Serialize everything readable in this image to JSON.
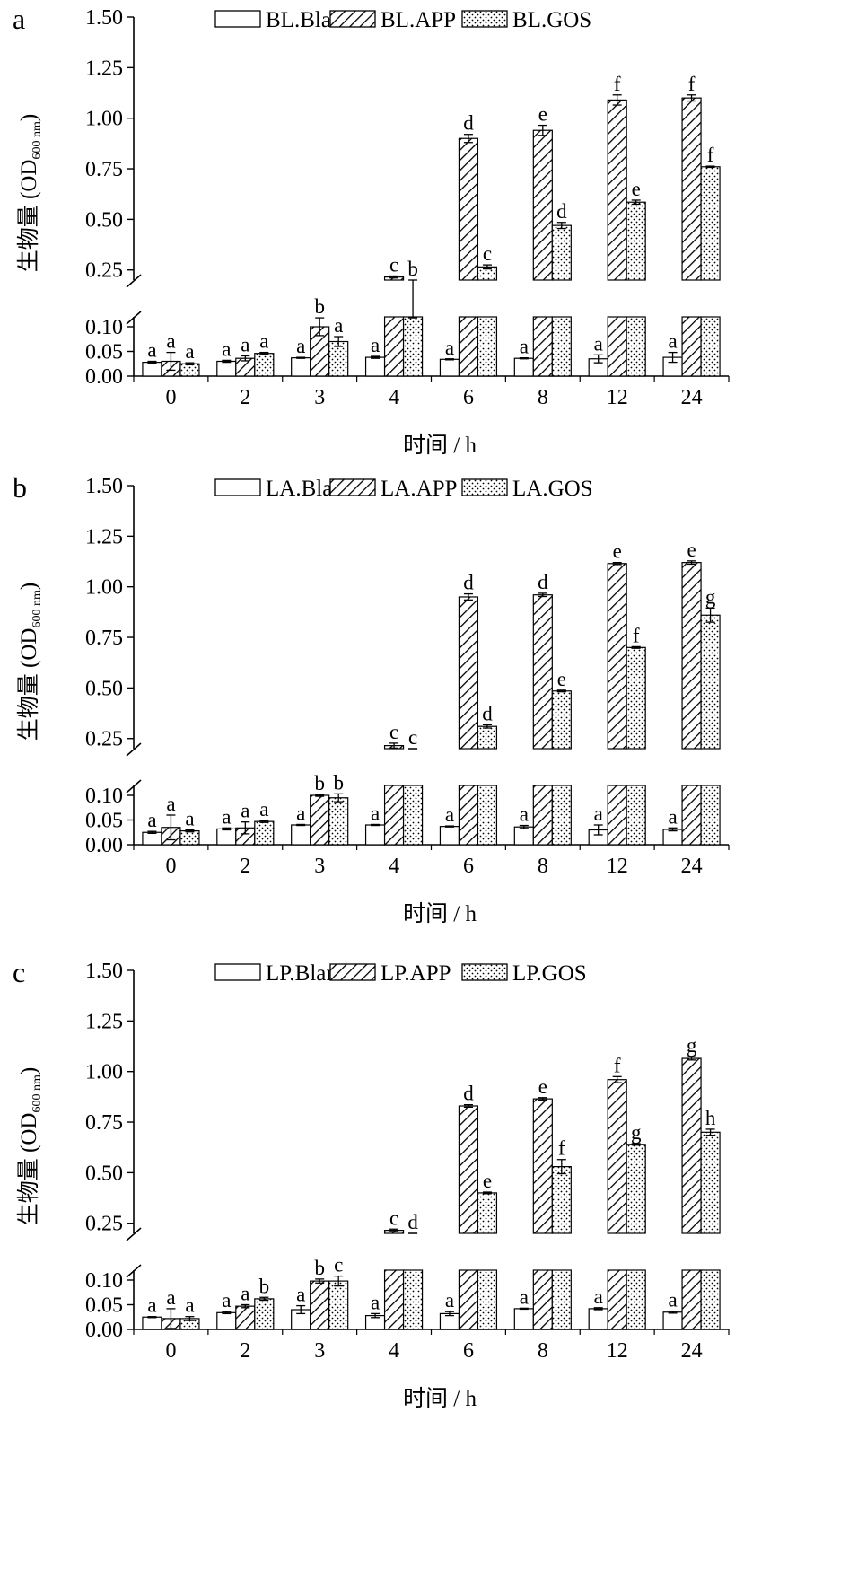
{
  "chart_data": [
    {
      "panel": "a",
      "type": "bar",
      "ylabel": "生物量 (OD",
      "ylabel_sub": "600 nm",
      "ylabel_end": ")",
      "xlabel": "时间 / h",
      "categories": [
        "0",
        "2",
        "3",
        "4",
        "6",
        "8",
        "12",
        "24"
      ],
      "yticks_upper": [
        "1.50",
        "1.25",
        "1.00",
        "0.75",
        "0.50",
        "0.25"
      ],
      "yticks_lower": [
        "0.10",
        "0.05",
        "0.00"
      ],
      "ylim_upper": [
        0.2,
        1.5
      ],
      "ylim_lower": [
        0.0,
        0.12
      ],
      "axis_break": true,
      "series": [
        {
          "name": "BL.Blank",
          "pattern": "blank",
          "values": [
            0.028,
            0.03,
            0.037,
            0.038,
            0.034,
            0.036,
            0.035,
            0.038
          ],
          "errors": [
            0.002,
            0.002,
            0.001,
            0.002,
            0.001,
            0.001,
            0.008,
            0.01
          ],
          "labels": [
            "a",
            "a",
            "a",
            "a",
            "a",
            "a",
            "a",
            "a"
          ]
        },
        {
          "name": "BL.APP",
          "pattern": "hatch",
          "values": [
            0.03,
            0.036,
            0.1,
            0.215,
            0.9,
            0.94,
            1.09,
            1.1
          ],
          "errors": [
            0.018,
            0.005,
            0.018,
            0.005,
            0.02,
            0.025,
            0.025,
            0.015
          ],
          "labels": [
            "a",
            "a",
            "b",
            "c",
            "d",
            "e",
            "f",
            "f"
          ]
        },
        {
          "name": "BL.GOS",
          "pattern": "dots",
          "values": [
            0.025,
            0.046,
            0.07,
            0.12,
            0.265,
            0.47,
            0.585,
            0.76
          ],
          "errors": [
            0.002,
            0.002,
            0.01,
            0.002,
            0.01,
            0.015,
            0.01,
            0.003
          ],
          "labels": [
            "a",
            "a",
            "a",
            "b",
            "c",
            "d",
            "e",
            "f"
          ]
        }
      ]
    },
    {
      "panel": "b",
      "type": "bar",
      "ylabel": "生物量 (OD",
      "ylabel_sub": "600 nm",
      "ylabel_end": ")",
      "xlabel": "时间 / h",
      "categories": [
        "0",
        "2",
        "3",
        "4",
        "6",
        "8",
        "12",
        "24"
      ],
      "yticks_upper": [
        "1.50",
        "1.25",
        "1.00",
        "0.75",
        "0.50",
        "0.25"
      ],
      "yticks_lower": [
        "0.10",
        "0.05",
        "0.00"
      ],
      "ylim_upper": [
        0.2,
        1.5
      ],
      "ylim_lower": [
        0.0,
        0.12
      ],
      "axis_break": true,
      "series": [
        {
          "name": "LA.Blank",
          "pattern": "blank",
          "values": [
            0.025,
            0.032,
            0.04,
            0.04,
            0.037,
            0.036,
            0.03,
            0.031
          ],
          "errors": [
            0.002,
            0.002,
            0.001,
            0.001,
            0.001,
            0.003,
            0.01,
            0.003
          ],
          "labels": [
            "a",
            "a",
            "a",
            "a",
            "a",
            "a",
            "a",
            "a"
          ]
        },
        {
          "name": "LA.APP",
          "pattern": "hatch",
          "values": [
            0.035,
            0.034,
            0.1,
            0.215,
            0.95,
            0.96,
            1.115,
            1.12
          ],
          "errors": [
            0.025,
            0.012,
            0.002,
            0.012,
            0.015,
            0.008,
            0.005,
            0.008
          ],
          "labels": [
            "a",
            "a",
            "b",
            "c",
            "d",
            "d",
            "e",
            "e"
          ]
        },
        {
          "name": "LA.GOS",
          "pattern": "dots",
          "values": [
            0.028,
            0.047,
            0.095,
            0.145,
            0.31,
            0.485,
            0.7,
            0.86
          ],
          "errors": [
            0.002,
            0.002,
            0.008,
            0.002,
            0.008,
            0.004,
            0.004,
            0.035
          ],
          "labels": [
            "a",
            "a",
            "b",
            "c",
            "d",
            "e",
            "f",
            "g"
          ]
        }
      ]
    },
    {
      "panel": "c",
      "type": "bar",
      "ylabel": "生物量 (OD",
      "ylabel_sub": "600 nm",
      "ylabel_end": ")",
      "xlabel": "时间 / h",
      "categories": [
        "0",
        "2",
        "3",
        "4",
        "6",
        "8",
        "12",
        "24"
      ],
      "yticks_upper": [
        "1.50",
        "1.25",
        "1.00",
        "0.75",
        "0.50",
        "0.25"
      ],
      "yticks_lower": [
        "0.10",
        "0.05",
        "0.00"
      ],
      "ylim_upper": [
        0.2,
        1.5
      ],
      "ylim_lower": [
        0.0,
        0.12
      ],
      "axis_break": true,
      "series": [
        {
          "name": "LP.Blank",
          "pattern": "blank",
          "values": [
            0.025,
            0.034,
            0.04,
            0.028,
            0.032,
            0.042,
            0.042,
            0.035
          ],
          "errors": [
            0.001,
            0.002,
            0.008,
            0.004,
            0.004,
            0.001,
            0.002,
            0.002
          ],
          "labels": [
            "a",
            "a",
            "a",
            "a",
            "a",
            "a",
            "a",
            "a"
          ]
        },
        {
          "name": "LP.APP",
          "pattern": "hatch",
          "values": [
            0.022,
            0.047,
            0.098,
            0.215,
            0.83,
            0.865,
            0.96,
            1.065
          ],
          "errors": [
            0.02,
            0.003,
            0.004,
            0.006,
            0.006,
            0.006,
            0.015,
            0.008
          ],
          "labels": [
            "a",
            "a",
            "b",
            "c",
            "d",
            "e",
            "f",
            "g"
          ]
        },
        {
          "name": "LP.GOS",
          "pattern": "dots",
          "values": [
            0.022,
            0.062,
            0.098,
            0.175,
            0.4,
            0.53,
            0.64,
            0.7
          ],
          "errors": [
            0.004,
            0.003,
            0.01,
            0.004,
            0.004,
            0.035,
            0.004,
            0.015
          ],
          "labels": [
            "a",
            "b",
            "c",
            "d",
            "e",
            "f",
            "g",
            "h"
          ]
        }
      ]
    }
  ]
}
